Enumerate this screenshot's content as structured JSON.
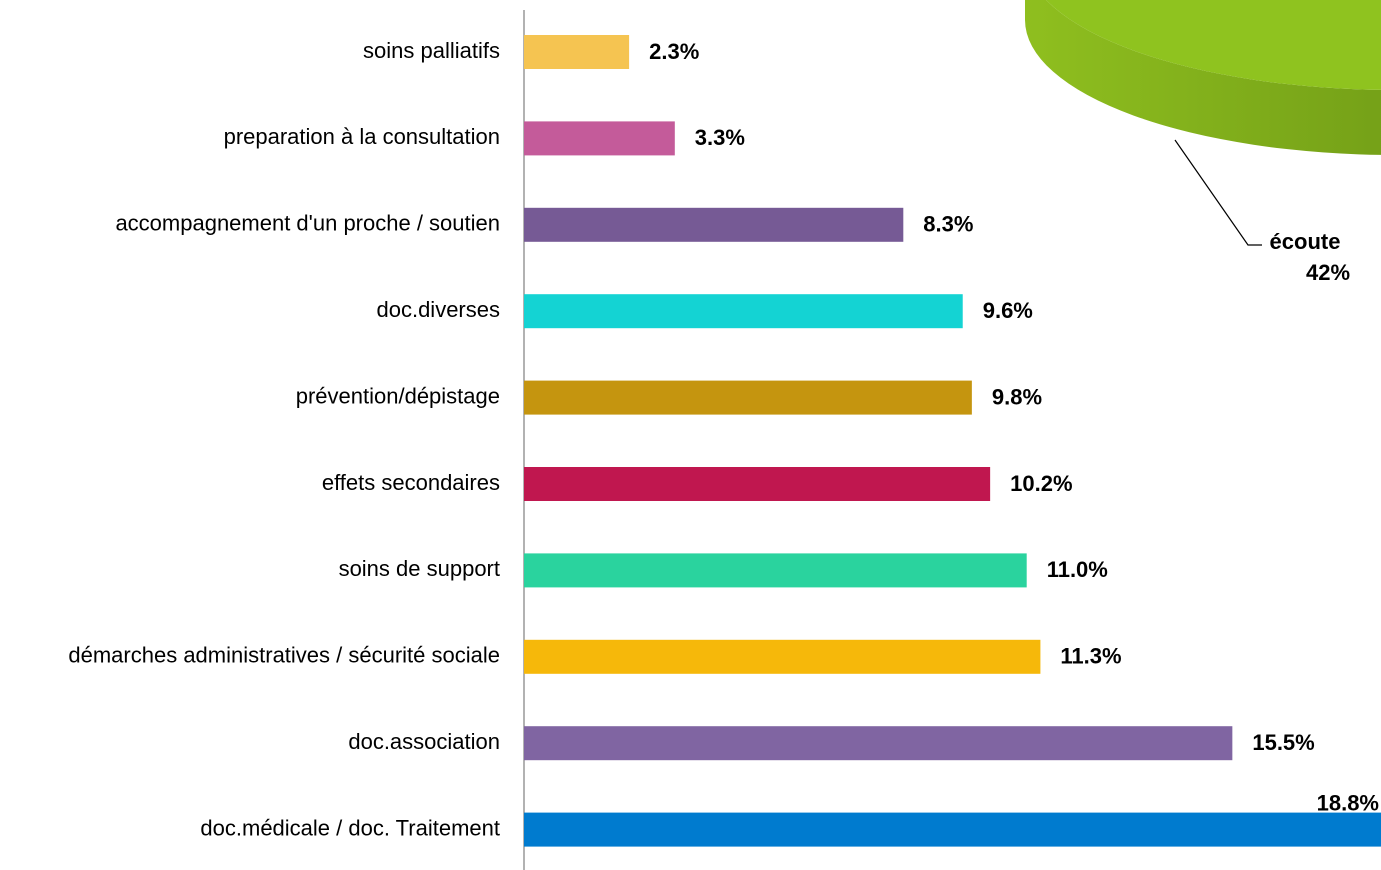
{
  "chart_data": [
    {
      "type": "bar",
      "orientation": "horizontal",
      "categories": [
        "soins palliatifs",
        "preparation à la consultation",
        "accompagnement d'un proche / soutien",
        "doc.diverses",
        "prévention/dépistage",
        "effets secondaires",
        "soins de support",
        "démarches administratives / sécurité sociale",
        "doc.association",
        "doc.médicale / doc. Traitement"
      ],
      "values": [
        2.3,
        3.3,
        8.3,
        9.6,
        9.8,
        10.2,
        11.0,
        11.3,
        15.5,
        18.8
      ],
      "value_labels": [
        "2.3%",
        "3.3%",
        "8.3%",
        "9.6%",
        "9.8%",
        "10.2%",
        "11.0%",
        "11.3%",
        "15.5%",
        "18.8%"
      ],
      "colors": [
        "#f5c451",
        "#c45b9a",
        "#765a95",
        "#14d3d3",
        "#c5950f",
        "#c0174f",
        "#2ad39e",
        "#f6b80a",
        "#8065a2",
        "#007bcf"
      ]
    },
    {
      "type": "pie",
      "labels": [
        "écoute"
      ],
      "values": [
        42
      ],
      "value_labels": [
        "42%"
      ],
      "colors": [
        "#8fc31f"
      ]
    }
  ]
}
